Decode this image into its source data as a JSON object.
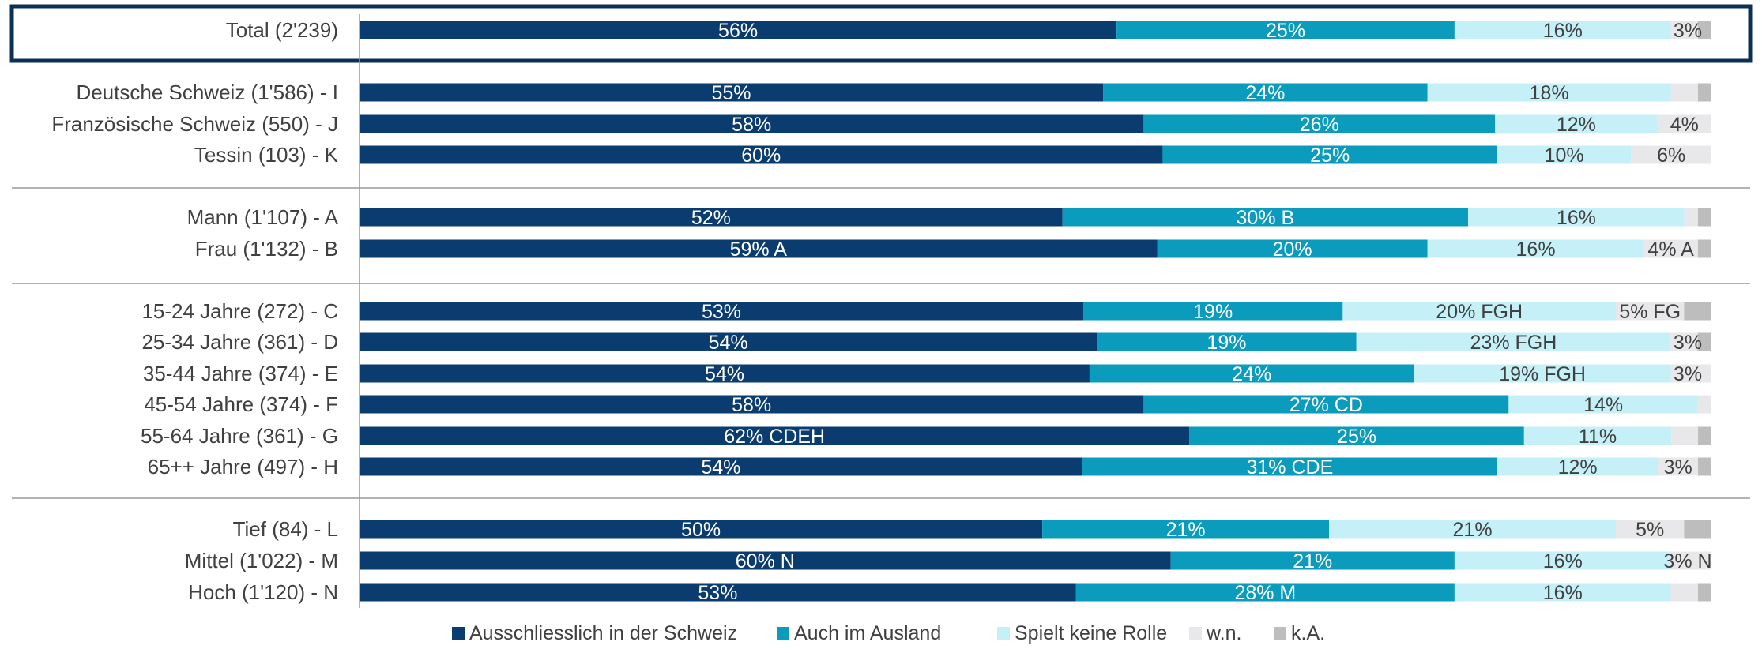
{
  "chart_data": {
    "type": "bar",
    "orientation": "horizontal",
    "stacked": true,
    "percent_stacked": true,
    "xlim": [
      0,
      100
    ],
    "grid": false,
    "legend_position": "bottom",
    "categories": [
      "Total (2'239)",
      "Deutsche Schweiz (1'586) - I",
      "Französische Schweiz (550) - J",
      "Tessin (103) - K",
      "Mann (1'107) - A",
      "Frau (1'132) - B",
      "15-24 Jahre (272) - C",
      "25-34 Jahre (361) - D",
      "35-44 Jahre (374) - E",
      "45-54 Jahre (374) - F",
      "55-64 Jahre (361) - G",
      "65++ Jahre (497) - H",
      "Tief (84) - L",
      "Mittel (1'022) - M",
      "Hoch (1'120) - N"
    ],
    "groups": [
      [
        "Total (2'239)"
      ],
      [
        "Deutsche Schweiz (1'586) - I",
        "Französische Schweiz (550) - J",
        "Tessin (103) - K"
      ],
      [
        "Mann (1'107) - A",
        "Frau (1'132) - B"
      ],
      [
        "15-24 Jahre (272) - C",
        "25-34 Jahre (361) - D",
        "35-44 Jahre (374) - E",
        "45-54 Jahre (374) - F",
        "55-64 Jahre (361) - G",
        "65++ Jahre (497) - H"
      ],
      [
        "Tief (84) - L",
        "Mittel (1'022) - M",
        "Hoch (1'120) - N"
      ]
    ],
    "highlighted_category": "Total (2'239)",
    "series": [
      {
        "name": "Ausschliesslich in der Schweiz",
        "color": "#0b3c6f",
        "values": [
          56,
          55,
          58,
          60,
          52,
          59,
          53,
          54,
          54,
          58,
          62,
          54,
          50,
          60,
          53
        ],
        "labels": [
          "56%",
          "55%",
          "58%",
          "60%",
          "52%",
          "59% A",
          "53%",
          "54%",
          "54%",
          "58%",
          "62% CDEH",
          "54%",
          "50%",
          "60% N",
          "53%"
        ]
      },
      {
        "name": "Auch im Ausland",
        "color": "#0b9bbd",
        "values": [
          25,
          24,
          26,
          25,
          30,
          20,
          19,
          19,
          24,
          27,
          25,
          31,
          21,
          21,
          28
        ],
        "labels": [
          "25%",
          "24%",
          "26%",
          "25%",
          "30% B",
          "20%",
          "19%",
          "19%",
          "24%",
          "27% CD",
          "25%",
          "31% CDE",
          "21%",
          "21%",
          "28% M"
        ]
      },
      {
        "name": "Spielt keine Rolle",
        "color": "#c5f0f8",
        "values": [
          16,
          18,
          12,
          10,
          16,
          16,
          20,
          23,
          19,
          14,
          11,
          12,
          21,
          16,
          16
        ],
        "labels": [
          "16%",
          "18%",
          "12%",
          "10%",
          "16%",
          "16%",
          "20% FGH",
          "23% FGH",
          "19% FGH",
          "14%",
          "11%",
          "12%",
          "21%",
          "16%",
          "16%"
        ]
      },
      {
        "name": "w.n.",
        "color": "#e8e8ea",
        "values": [
          2,
          2,
          4,
          6,
          1,
          4,
          5,
          2,
          3,
          1,
          2,
          3,
          5,
          3,
          2
        ],
        "labels": [
          "",
          "",
          "4%",
          "6%",
          "",
          "4% A",
          "5% FG",
          "",
          "3%",
          "",
          "",
          "3%",
          "5%",
          "3% N",
          ""
        ]
      },
      {
        "name": "k.A.",
        "color": "#bdbdbd",
        "values": [
          1,
          1,
          0,
          0,
          1,
          1,
          2,
          1,
          0,
          0,
          1,
          1,
          2,
          0,
          1
        ],
        "labels": [
          "3%",
          "",
          "",
          "",
          "",
          "",
          "",
          "3%",
          "",
          "",
          "",
          "",
          "",
          "",
          ""
        ]
      }
    ]
  }
}
